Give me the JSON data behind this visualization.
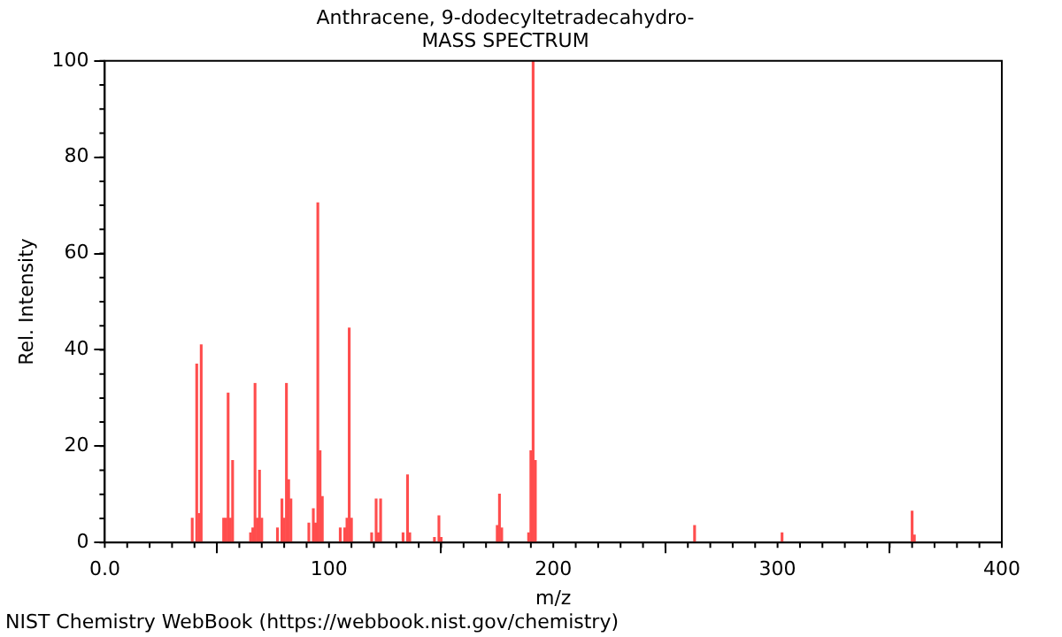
{
  "chart_data": {
    "type": "bar",
    "title": [
      "Anthracene, 9-dodecyltetradecahydro-",
      "MASS SPECTRUM"
    ],
    "xlabel": "m/z",
    "ylabel": "Rel. Intensity",
    "x": [
      39,
      41,
      42,
      43,
      53,
      54,
      55,
      56,
      57,
      65,
      66,
      67,
      68,
      69,
      70,
      77,
      79,
      80,
      81,
      82,
      83,
      91,
      93,
      94,
      95,
      96,
      97,
      105,
      107,
      108,
      109,
      110,
      119,
      121,
      122,
      123,
      133,
      135,
      136,
      147,
      149,
      150,
      175,
      176,
      177,
      189,
      190,
      191,
      192,
      263,
      302,
      360,
      361
    ],
    "values": [
      5,
      37,
      6,
      41,
      5,
      5,
      31,
      5,
      17,
      2,
      3,
      33,
      5,
      15,
      5,
      3,
      9,
      5,
      33,
      13,
      9,
      4,
      7,
      4,
      70.5,
      19,
      9.5,
      3,
      3,
      5,
      44.5,
      5,
      2,
      9,
      2,
      9,
      2,
      14,
      2,
      1,
      5.5,
      1,
      3.5,
      10,
      3,
      2,
      19,
      100,
      17,
      3.5,
      2,
      6.5,
      1.5
    ],
    "color": "#ff4d4d",
    "xlim": [
      0,
      400
    ],
    "xticks": [
      {
        "value": 0,
        "label": "0.0"
      },
      100,
      200,
      300,
      400
    ],
    "ylim": [
      0,
      100
    ],
    "yticks": [
      0,
      20,
      40,
      60,
      80,
      100
    ],
    "grid": false,
    "legend": false,
    "annotations": [
      "NIST Chemistry WebBook (https://webbook.nist.gov/chemistry)"
    ]
  }
}
